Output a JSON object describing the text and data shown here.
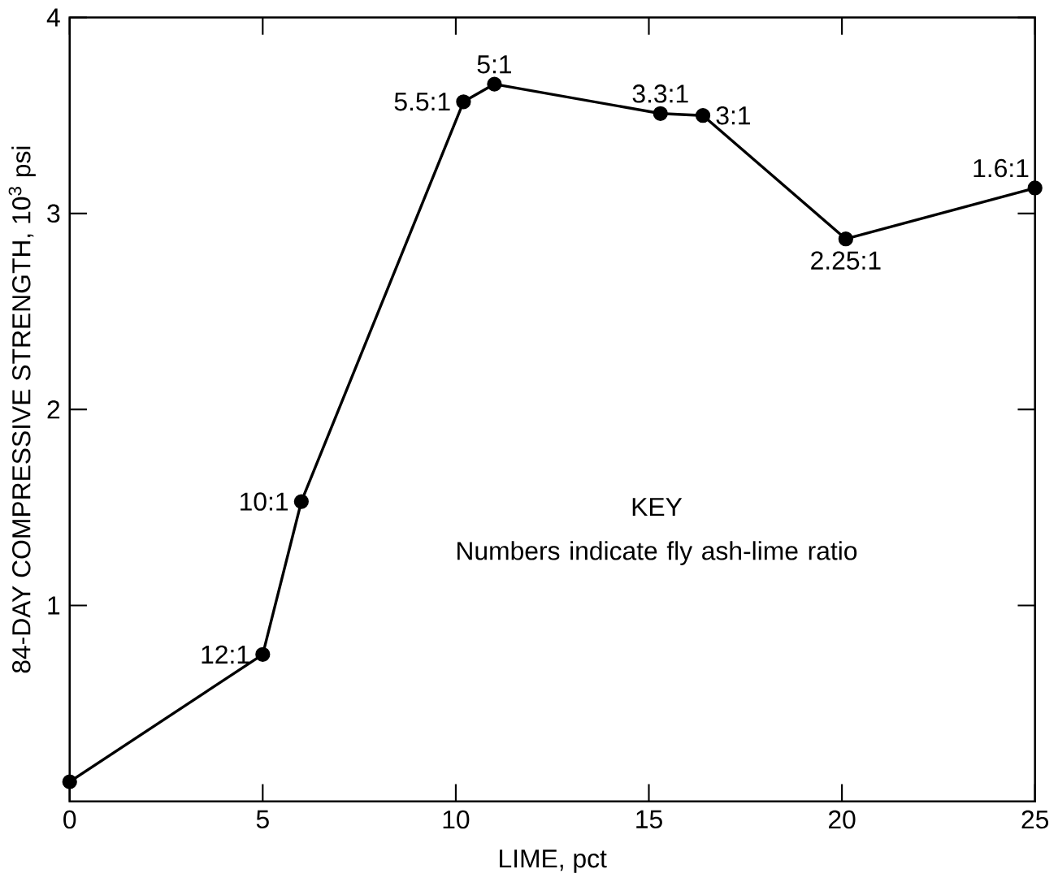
{
  "chart_data": {
    "type": "line",
    "xlabel": "LIME, pct",
    "ylabel": "84-DAY COMPRESSIVE STRENGTH, 10$^{3}$ psi",
    "x": [
      0,
      5,
      6,
      10.2,
      11,
      15.3,
      16.4,
      20.1,
      25
    ],
    "series": [
      {
        "color": "#000000",
        "values": [
          0.1,
          0.75,
          1.53,
          3.57,
          3.66,
          3.51,
          3.5,
          2.87,
          3.13
        ]
      }
    ],
    "xlim": [
      0,
      25
    ],
    "ylim": [
      0,
      4
    ],
    "xticks": [
      0,
      5,
      10,
      15,
      20,
      25
    ],
    "yticks": [
      1,
      2,
      3,
      4
    ],
    "marker": "circle",
    "line_style": "solid",
    "annotations": [
      {
        "text": "12:1",
        "x": 5,
        "y": 0.75
      },
      {
        "text": "10:1",
        "x": 6,
        "y": 1.53
      },
      {
        "text": "5.5:1",
        "x": 10.2,
        "y": 3.57
      },
      {
        "text": "5:1",
        "x": 11,
        "y": 3.66
      },
      {
        "text": "3.3:1",
        "x": 15.3,
        "y": 3.51
      },
      {
        "text": "3:1",
        "x": 16.4,
        "y": 3.5
      },
      {
        "text": "2.25:1",
        "x": 20.1,
        "y": 2.87
      },
      {
        "text": "1.6:1",
        "x": 25,
        "y": 3.13
      },
      "KEY",
      "Numbers indicate fly ash-lime ratio"
    ]
  }
}
